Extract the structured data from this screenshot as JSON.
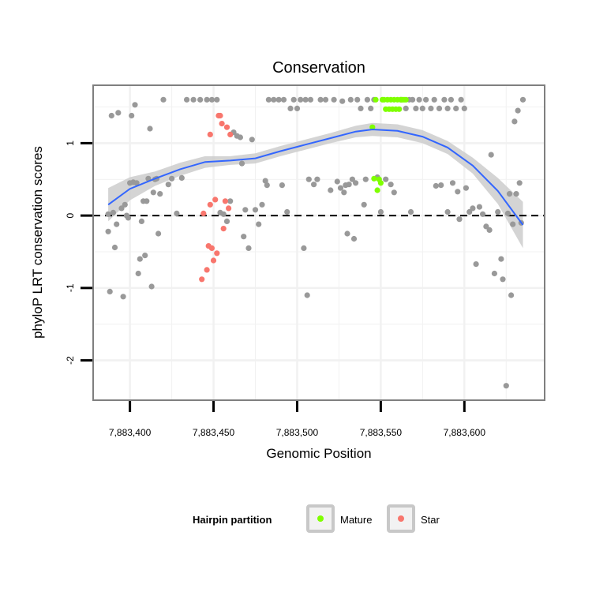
{
  "chart_data": {
    "type": "scatter",
    "title": "Conservation",
    "xlabel": "Genomic Position",
    "ylabel": "phyloP LRT conservation scores",
    "xlim": [
      7883378,
      7883648
    ],
    "ylim": [
      -2.55,
      1.8
    ],
    "x_ticks": [
      7883400,
      7883450,
      7883500,
      7883550,
      7883600
    ],
    "x_tick_labels": [
      "7,883,400",
      "7,883,450",
      "7,883,500",
      "7,883,550",
      "7,883,600"
    ],
    "y_ticks": [
      -2,
      -1,
      0,
      1
    ],
    "y_tick_labels": [
      "-2",
      "-1",
      "0",
      "1"
    ],
    "reference_line": {
      "y": 0,
      "style": "dashed"
    },
    "grid": true,
    "legend": {
      "title": "Hairpin partition",
      "position": "bottom",
      "entries": [
        {
          "name": "Mature",
          "color": "#7fff00"
        },
        {
          "name": "Star",
          "color": "#f8766d"
        }
      ]
    },
    "colors": {
      "background_points": "#999999",
      "mature": "#7fff00",
      "star": "#f8766d",
      "smooth_line": "#3366ff",
      "confidence_band": "#cccccc"
    },
    "series": [
      {
        "role": "background",
        "color": "#999999",
        "points": [
          [
            7883387,
            0.02
          ],
          [
            7883387,
            -0.22
          ],
          [
            7883388,
            -1.05
          ],
          [
            7883389,
            1.38
          ],
          [
            7883390,
            0.04
          ],
          [
            7883391,
            -0.44
          ],
          [
            7883392,
            -0.12
          ],
          [
            7883393,
            1.42
          ],
          [
            7883395,
            0.1
          ],
          [
            7883396,
            -1.12
          ],
          [
            7883397,
            0.15
          ],
          [
            7883398,
            0.0
          ],
          [
            7883399,
            -0.03
          ],
          [
            7883400,
            0.45
          ],
          [
            7883401,
            1.38
          ],
          [
            7883402,
            0.46
          ],
          [
            7883403,
            1.53
          ],
          [
            7883404,
            0.45
          ],
          [
            7883405,
            -0.8
          ],
          [
            7883406,
            -0.6
          ],
          [
            7883407,
            -0.08
          ],
          [
            7883408,
            0.2
          ],
          [
            7883409,
            -0.55
          ],
          [
            7883410,
            0.2
          ],
          [
            7883411,
            0.51
          ],
          [
            7883412,
            1.2
          ],
          [
            7883413,
            -0.98
          ],
          [
            7883414,
            0.32
          ],
          [
            7883415,
            0.5
          ],
          [
            7883416,
            0.51
          ],
          [
            7883417,
            -0.25
          ],
          [
            7883418,
            0.3
          ],
          [
            7883420,
            1.6
          ],
          [
            7883423,
            0.43
          ],
          [
            7883425,
            0.51
          ],
          [
            7883428,
            0.03
          ],
          [
            7883431,
            0.52
          ],
          [
            7883434,
            1.6
          ],
          [
            7883438,
            1.6
          ],
          [
            7883442,
            1.6
          ],
          [
            7883446,
            1.6
          ],
          [
            7883449,
            1.6
          ],
          [
            7883452,
            1.6
          ],
          [
            7883454,
            0.04
          ],
          [
            7883456,
            0.02
          ],
          [
            7883458,
            -0.08
          ],
          [
            7883460,
            0.2
          ],
          [
            7883462,
            1.15
          ],
          [
            7883464,
            1.1
          ],
          [
            7883466,
            1.08
          ],
          [
            7883467,
            0.72
          ],
          [
            7883468,
            -0.29
          ],
          [
            7883469,
            0.08
          ],
          [
            7883471,
            -0.45
          ],
          [
            7883473,
            1.05
          ],
          [
            7883475,
            0.08
          ],
          [
            7883477,
            -0.12
          ],
          [
            7883479,
            0.15
          ],
          [
            7883481,
            0.48
          ],
          [
            7883482,
            0.42
          ],
          [
            7883483,
            1.6
          ],
          [
            7883486,
            1.6
          ],
          [
            7883489,
            1.6
          ],
          [
            7883491,
            0.42
          ],
          [
            7883492,
            1.6
          ],
          [
            7883494,
            0.05
          ],
          [
            7883496,
            1.48
          ],
          [
            7883498,
            1.6
          ],
          [
            7883500,
            1.48
          ],
          [
            7883502,
            1.6
          ],
          [
            7883504,
            -0.45
          ],
          [
            7883505,
            1.6
          ],
          [
            7883506,
            -1.1
          ],
          [
            7883507,
            0.5
          ],
          [
            7883508,
            1.6
          ],
          [
            7883510,
            0.43
          ],
          [
            7883512,
            0.5
          ],
          [
            7883514,
            1.6
          ],
          [
            7883517,
            1.6
          ],
          [
            7883520,
            0.35
          ],
          [
            7883522,
            1.6
          ],
          [
            7883524,
            0.47
          ],
          [
            7883526,
            0.38
          ],
          [
            7883527,
            1.58
          ],
          [
            7883528,
            0.32
          ],
          [
            7883529,
            0.42
          ],
          [
            7883530,
            -0.25
          ],
          [
            7883531,
            0.43
          ],
          [
            7883532,
            1.6
          ],
          [
            7883533,
            0.5
          ],
          [
            7883534,
            -0.32
          ],
          [
            7883535,
            0.45
          ],
          [
            7883536,
            1.6
          ],
          [
            7883538,
            1.48
          ],
          [
            7883540,
            0.15
          ],
          [
            7883541,
            0.5
          ],
          [
            7883542,
            1.6
          ],
          [
            7883544,
            1.48
          ],
          [
            7883546,
            1.6
          ],
          [
            7883548,
            0.53
          ],
          [
            7883550,
            0.05
          ],
          [
            7883553,
            0.5
          ],
          [
            7883556,
            0.43
          ],
          [
            7883558,
            0.32
          ],
          [
            7883562,
            1.6
          ],
          [
            7883565,
            1.48
          ],
          [
            7883567,
            1.6
          ],
          [
            7883568,
            0.05
          ],
          [
            7883569,
            1.6
          ],
          [
            7883571,
            1.48
          ],
          [
            7883573,
            1.6
          ],
          [
            7883575,
            1.48
          ],
          [
            7883577,
            1.6
          ],
          [
            7883580,
            1.48
          ],
          [
            7883582,
            1.6
          ],
          [
            7883583,
            0.41
          ],
          [
            7883585,
            1.48
          ],
          [
            7883586,
            0.42
          ],
          [
            7883588,
            1.6
          ],
          [
            7883590,
            1.48
          ],
          [
            7883590,
            0.05
          ],
          [
            7883592,
            1.6
          ],
          [
            7883593,
            0.45
          ],
          [
            7883595,
            1.48
          ],
          [
            7883596,
            0.33
          ],
          [
            7883597,
            -0.05
          ],
          [
            7883598,
            1.6
          ],
          [
            7883600,
            1.48
          ],
          [
            7883601,
            0.38
          ],
          [
            7883603,
            0.05
          ],
          [
            7883605,
            0.1
          ],
          [
            7883607,
            -0.67
          ],
          [
            7883609,
            0.12
          ],
          [
            7883611,
            0.02
          ],
          [
            7883613,
            -0.15
          ],
          [
            7883615,
            -0.2
          ],
          [
            7883616,
            0.84
          ],
          [
            7883618,
            -0.8
          ],
          [
            7883620,
            0.05
          ],
          [
            7883622,
            -0.6
          ],
          [
            7883623,
            -0.88
          ],
          [
            7883625,
            -2.35
          ],
          [
            7883626,
            0.03
          ],
          [
            7883627,
            0.3
          ],
          [
            7883628,
            -1.1
          ],
          [
            7883629,
            -0.12
          ],
          [
            7883630,
            1.3
          ],
          [
            7883631,
            0.3
          ],
          [
            7883632,
            1.45
          ],
          [
            7883633,
            0.45
          ],
          [
            7883634,
            -0.1
          ],
          [
            7883635,
            1.6
          ]
        ]
      },
      {
        "name": "Mature",
        "color": "#7fff00",
        "points": [
          [
            7883545,
            1.22
          ],
          [
            7883546,
            0.51
          ],
          [
            7883547,
            1.6
          ],
          [
            7883548,
            0.35
          ],
          [
            7883549,
            0.5
          ],
          [
            7883550,
            0.45
          ],
          [
            7883551,
            1.6
          ],
          [
            7883552,
            1.6
          ],
          [
            7883553,
            1.47
          ],
          [
            7883554,
            1.6
          ],
          [
            7883555,
            1.47
          ],
          [
            7883556,
            1.6
          ],
          [
            7883557,
            1.47
          ],
          [
            7883558,
            1.6
          ],
          [
            7883559,
            1.47
          ],
          [
            7883560,
            1.6
          ],
          [
            7883561,
            1.47
          ],
          [
            7883562,
            1.6
          ],
          [
            7883563,
            1.6
          ],
          [
            7883564,
            1.6
          ],
          [
            7883565,
            1.6
          ]
        ]
      },
      {
        "name": "Star",
        "color": "#f8766d",
        "points": [
          [
            7883443,
            -0.88
          ],
          [
            7883444,
            0.03
          ],
          [
            7883446,
            -0.75
          ],
          [
            7883447,
            -0.42
          ],
          [
            7883448,
            0.15
          ],
          [
            7883448,
            1.12
          ],
          [
            7883449,
            -0.45
          ],
          [
            7883450,
            -0.62
          ],
          [
            7883451,
            0.22
          ],
          [
            7883452,
            -0.52
          ],
          [
            7883453,
            1.38
          ],
          [
            7883454,
            1.38
          ],
          [
            7883455,
            1.27
          ],
          [
            7883456,
            -0.18
          ],
          [
            7883457,
            0.2
          ],
          [
            7883458,
            1.22
          ],
          [
            7883459,
            0.1
          ],
          [
            7883460,
            1.12
          ]
        ]
      }
    ],
    "smooth": {
      "x": [
        7883387,
        7883400,
        7883415,
        7883430,
        7883445,
        7883460,
        7883475,
        7883490,
        7883505,
        7883520,
        7883535,
        7883545,
        7883560,
        7883575,
        7883590,
        7883605,
        7883620,
        7883635
      ],
      "y": [
        0.15,
        0.37,
        0.51,
        0.64,
        0.74,
        0.76,
        0.79,
        0.89,
        0.98,
        1.07,
        1.16,
        1.19,
        1.17,
        1.09,
        0.94,
        0.69,
        0.34,
        -0.13
      ],
      "lower": [
        -0.08,
        0.21,
        0.41,
        0.55,
        0.66,
        0.7,
        0.72,
        0.82,
        0.91,
        1.0,
        1.08,
        1.1,
        1.08,
        1.0,
        0.85,
        0.58,
        0.16,
        -0.45
      ],
      "upper": [
        0.38,
        0.53,
        0.61,
        0.73,
        0.82,
        0.82,
        0.86,
        0.96,
        1.05,
        1.14,
        1.24,
        1.28,
        1.26,
        1.18,
        1.03,
        0.8,
        0.52,
        0.19
      ]
    }
  }
}
